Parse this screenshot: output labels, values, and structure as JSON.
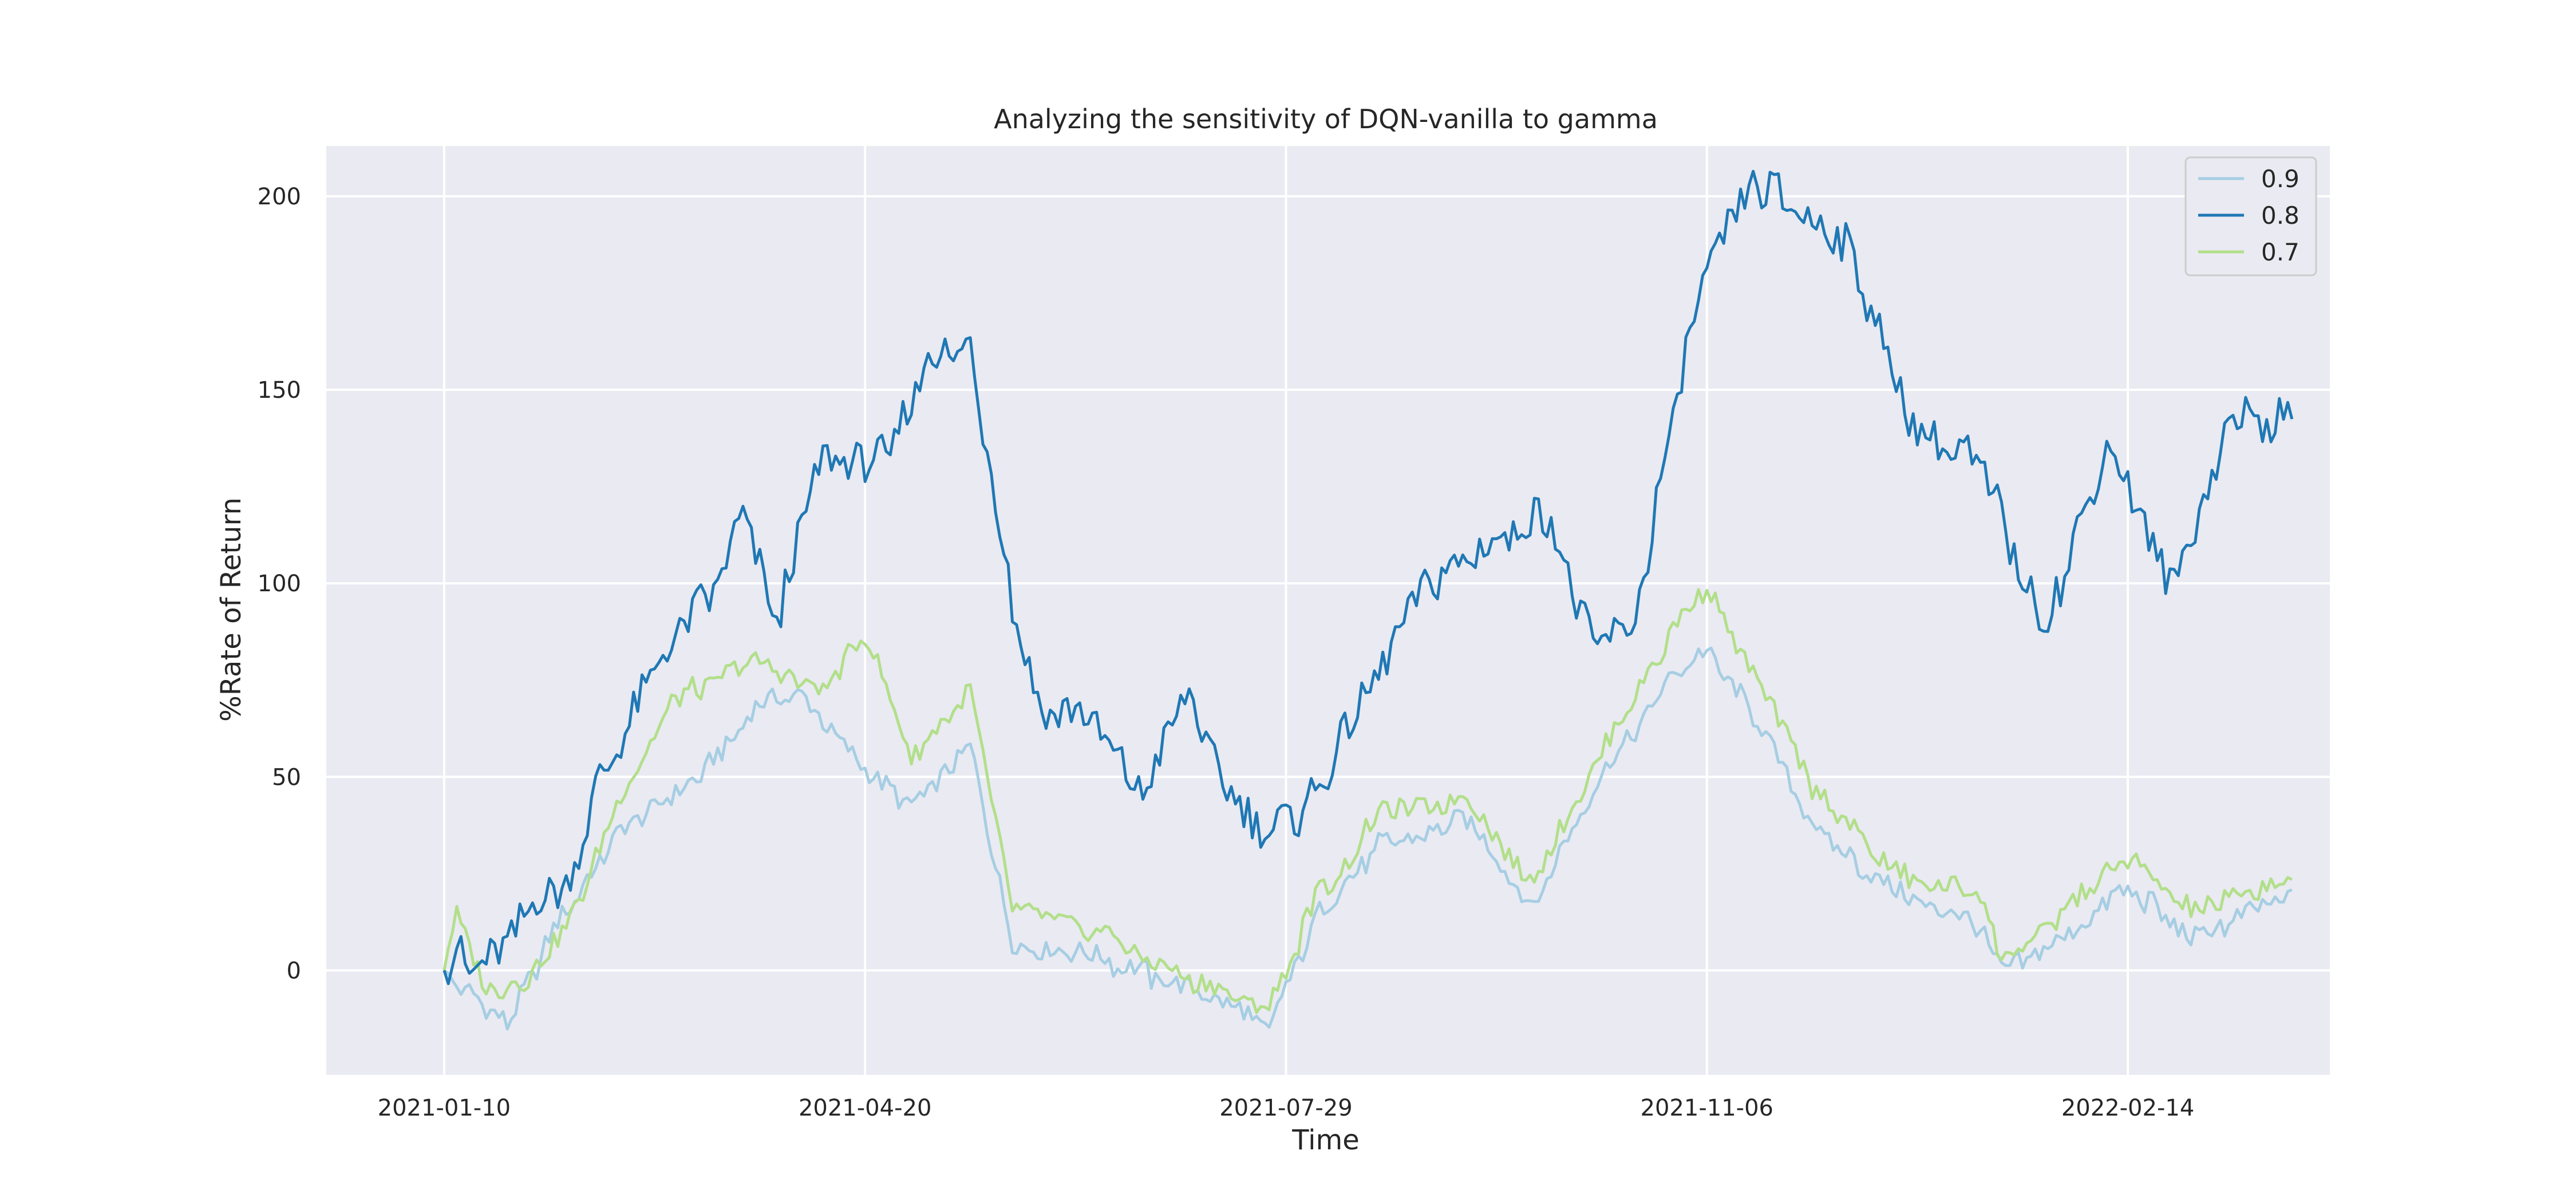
{
  "chart_data": {
    "type": "line",
    "title": "Analyzing the sensitivity of DQN-vanilla to gamma",
    "xlabel": "Time",
    "ylabel": "%Rate of Return",
    "x_start": "2021-01-10",
    "x_end": "2022-03-25",
    "xlim": [
      "2020-12-13",
      "2022-04-03"
    ],
    "ylim": [
      -27,
      213
    ],
    "xticks": [
      "2021-01-10",
      "2021-04-20",
      "2021-07-29",
      "2021-11-06",
      "2022-02-14"
    ],
    "yticks": [
      0,
      50,
      100,
      150,
      200
    ],
    "grid": true,
    "legend_position": "top-right",
    "background": "#eaeaf2",
    "series": [
      {
        "name": "0.9",
        "color": "#a6cee3",
        "points": [
          [
            "2021-01-10",
            0
          ],
          [
            "2021-01-20",
            -10
          ],
          [
            "2021-01-25",
            -14
          ],
          [
            "2021-02-05",
            10
          ],
          [
            "2021-02-20",
            35
          ],
          [
            "2021-03-10",
            48
          ],
          [
            "2021-03-25",
            68
          ],
          [
            "2021-04-05",
            72
          ],
          [
            "2021-04-20",
            52
          ],
          [
            "2021-05-01",
            42
          ],
          [
            "2021-05-15",
            58
          ],
          [
            "2021-05-25",
            8
          ],
          [
            "2021-06-15",
            3
          ],
          [
            "2021-07-01",
            -3
          ],
          [
            "2021-07-15",
            -8
          ],
          [
            "2021-07-25",
            -15
          ],
          [
            "2021-08-05",
            13
          ],
          [
            "2021-08-20",
            32
          ],
          [
            "2021-09-10",
            40
          ],
          [
            "2021-09-25",
            16
          ],
          [
            "2021-10-15",
            55
          ],
          [
            "2021-10-30",
            78
          ],
          [
            "2021-11-06",
            82
          ],
          [
            "2021-11-15",
            70
          ],
          [
            "2021-12-01",
            38
          ],
          [
            "2021-12-20",
            20
          ],
          [
            "2022-01-10",
            12
          ],
          [
            "2022-01-15",
            -1
          ],
          [
            "2022-01-30",
            8
          ],
          [
            "2022-02-14",
            22
          ],
          [
            "2022-03-01",
            8
          ],
          [
            "2022-03-25",
            19
          ]
        ]
      },
      {
        "name": "0.8",
        "color": "#1f78b4",
        "points": [
          [
            "2021-01-10",
            0
          ],
          [
            "2021-01-13",
            5
          ],
          [
            "2021-01-15",
            -1
          ],
          [
            "2021-02-10",
            26
          ],
          [
            "2021-02-15",
            48
          ],
          [
            "2021-02-28",
            75
          ],
          [
            "2021-03-15",
            98
          ],
          [
            "2021-03-22",
            116
          ],
          [
            "2021-03-30",
            90
          ],
          [
            "2021-04-10",
            132
          ],
          [
            "2021-04-25",
            132
          ],
          [
            "2021-05-05",
            159
          ],
          [
            "2021-05-15",
            160
          ],
          [
            "2021-05-25",
            95
          ],
          [
            "2021-06-01",
            66
          ],
          [
            "2021-06-10",
            66
          ],
          [
            "2021-06-25",
            45
          ],
          [
            "2021-07-05",
            73
          ],
          [
            "2021-07-15",
            45
          ],
          [
            "2021-07-25",
            35
          ],
          [
            "2021-08-05",
            45
          ],
          [
            "2021-08-15",
            68
          ],
          [
            "2021-08-30",
            100
          ],
          [
            "2021-09-15",
            110
          ],
          [
            "2021-09-30",
            118
          ],
          [
            "2021-10-10",
            81
          ],
          [
            "2021-10-20",
            90
          ],
          [
            "2021-11-01",
            160
          ],
          [
            "2021-11-06",
            180
          ],
          [
            "2021-11-16",
            203
          ],
          [
            "2021-11-24",
            200
          ],
          [
            "2021-12-10",
            185
          ],
          [
            "2021-12-25",
            140
          ],
          [
            "2022-01-10",
            131
          ],
          [
            "2022-01-25",
            88
          ],
          [
            "2022-02-10",
            136
          ],
          [
            "2022-02-25",
            98
          ],
          [
            "2022-03-10",
            142
          ],
          [
            "2022-03-25",
            144
          ]
        ]
      },
      {
        "name": "0.7",
        "color": "#b2df8a",
        "points": [
          [
            "2021-01-10",
            0
          ],
          [
            "2021-01-13",
            15
          ],
          [
            "2021-01-20",
            -5
          ],
          [
            "2021-01-30",
            -2
          ],
          [
            "2021-02-10",
            15
          ],
          [
            "2021-02-20",
            42
          ],
          [
            "2021-03-05",
            70
          ],
          [
            "2021-03-25",
            80
          ],
          [
            "2021-04-10",
            72
          ],
          [
            "2021-04-20",
            87
          ],
          [
            "2021-05-01",
            55
          ],
          [
            "2021-05-15",
            72
          ],
          [
            "2021-05-25",
            15
          ],
          [
            "2021-06-15",
            10
          ],
          [
            "2021-07-01",
            0
          ],
          [
            "2021-07-25",
            -10
          ],
          [
            "2021-08-05",
            18
          ],
          [
            "2021-08-20",
            40
          ],
          [
            "2021-09-10",
            45
          ],
          [
            "2021-09-25",
            22
          ],
          [
            "2021-10-15",
            62
          ],
          [
            "2021-10-30",
            90
          ],
          [
            "2021-11-06",
            99
          ],
          [
            "2021-11-15",
            80
          ],
          [
            "2021-12-01",
            48
          ],
          [
            "2021-12-20",
            25
          ],
          [
            "2022-01-10",
            20
          ],
          [
            "2022-01-15",
            2
          ],
          [
            "2022-01-30",
            15
          ],
          [
            "2022-02-14",
            30
          ],
          [
            "2022-03-01",
            15
          ],
          [
            "2022-03-25",
            24
          ]
        ]
      }
    ]
  }
}
